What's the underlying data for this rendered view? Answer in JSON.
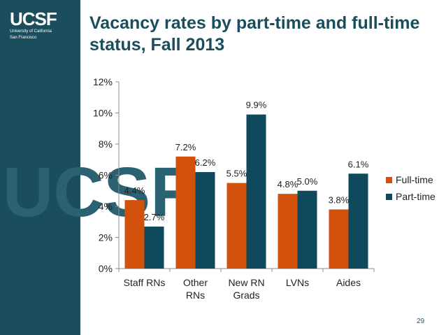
{
  "slide": {
    "title": "Vacancy rates by part-time and full-time status, Fall 2013",
    "page_number": "29",
    "logo": {
      "text": "UCSF",
      "subtitle_1": "University of California",
      "subtitle_2": "San Francisco"
    },
    "watermark": "UCSF"
  },
  "colors": {
    "full_time": "#d2520d",
    "part_time": "#0f4a5c",
    "title": "#1b4e5c",
    "sidebar": "#1b4e5c"
  },
  "chart_data": {
    "type": "bar",
    "categories": [
      [
        "Staff RNs"
      ],
      [
        "Other",
        "RNs"
      ],
      [
        "New RN",
        "Grads"
      ],
      [
        "LVNs"
      ],
      [
        "Aides"
      ]
    ],
    "series": [
      {
        "name": "Full-time",
        "values": [
          4.4,
          7.2,
          5.5,
          4.8,
          3.8
        ],
        "labels": [
          "4.4%",
          "7.2%",
          "5.5%",
          "4.8%",
          "3.8%"
        ],
        "color": "#d2520d"
      },
      {
        "name": "Part-time",
        "values": [
          2.7,
          6.2,
          9.9,
          5.0,
          6.1
        ],
        "labels": [
          "2.7%",
          "6.2%",
          "9.9%",
          "5.0%",
          "6.1%"
        ],
        "color": "#0f4a5c"
      }
    ],
    "yticks": [
      "0%",
      "2%",
      "4%",
      "6%",
      "8%",
      "10%",
      "12%"
    ],
    "ylim": [
      0,
      12
    ],
    "grid": false,
    "legend": "right"
  }
}
